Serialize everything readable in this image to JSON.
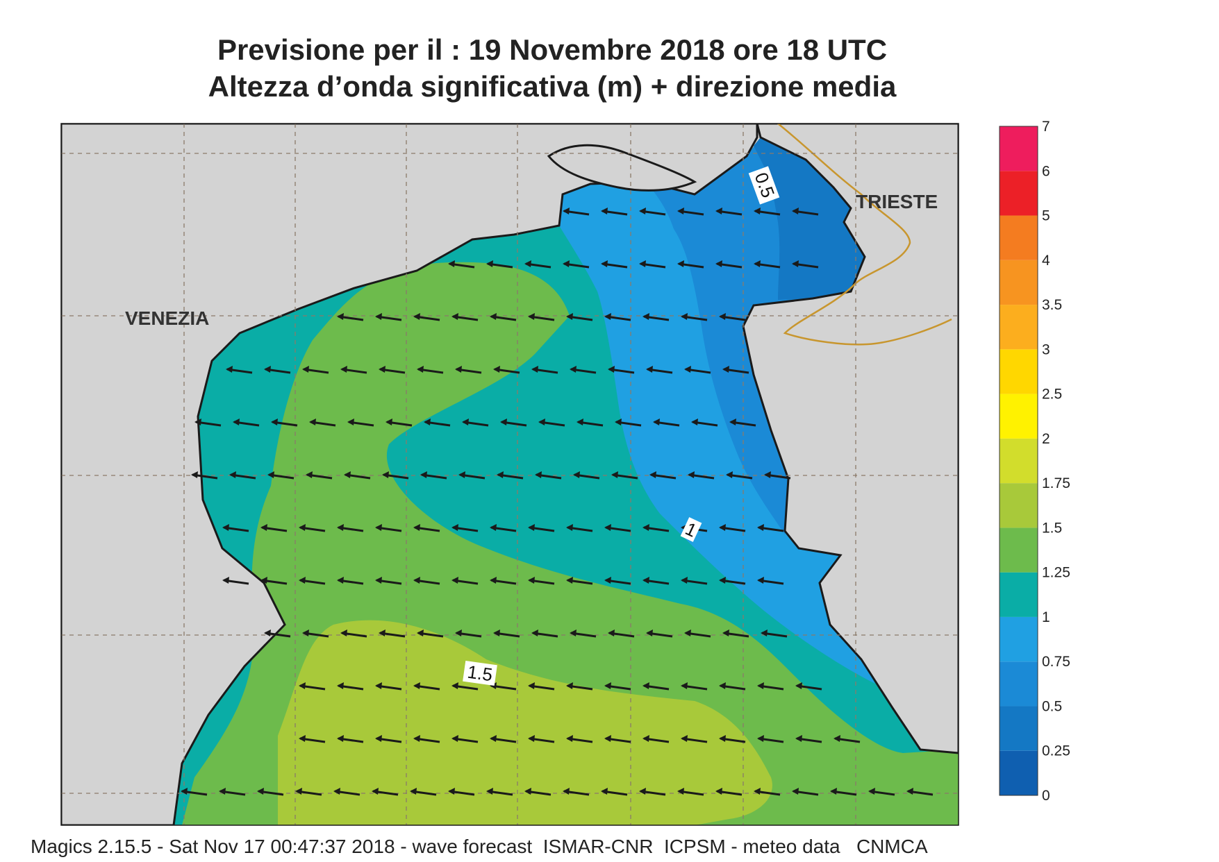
{
  "title_line1": "Previsione per il  :  19 Novembre  2018   ore 18 UTC",
  "title_line2": "Altezza d’onda significativa (m) + direzione media",
  "footer": "Magics 2.15.5 - Sat Nov 17 00:47:37 2018 - wave forecast  ISMAR-CNR  ICPSM - meteo data   CNMCA",
  "cities": [
    {
      "name": "VENEZIA"
    },
    {
      "name": "TRIESTE"
    }
  ],
  "contour_labels": [
    "0.5",
    "1",
    "1.5"
  ],
  "colorbar": {
    "levels": [
      {
        "label": "0",
        "color": "#0f5fb0"
      },
      {
        "label": "0.25",
        "color": "#1478c4"
      },
      {
        "label": "0.5",
        "color": "#1b8ad6"
      },
      {
        "label": "0.75",
        "color": "#20a0e2"
      },
      {
        "label": "1",
        "color": "#0aada6"
      },
      {
        "label": "1.25",
        "color": "#6dbb4c"
      },
      {
        "label": "1.5",
        "color": "#a8c93a"
      },
      {
        "label": "1.75",
        "color": "#d2dd2c"
      },
      {
        "label": "2",
        "color": "#fff200"
      },
      {
        "label": "2.5",
        "color": "#ffd700"
      },
      {
        "label": "3",
        "color": "#fcae1e"
      },
      {
        "label": "3.5",
        "color": "#f79420"
      },
      {
        "label": "4",
        "color": "#f47c20"
      },
      {
        "label": "5",
        "color": "#ec2027"
      },
      {
        "label": "6",
        "color": "#ee1d5d"
      },
      {
        "label": "7",
        "color": ""
      }
    ]
  },
  "colors": {
    "land": "#d3d3d3",
    "coast": "#1a1a1a",
    "border": "#c8962e",
    "grid": "#8a7a6a",
    "arrow": "#1a1a1a"
  },
  "wave_direction": "east-to-west"
}
